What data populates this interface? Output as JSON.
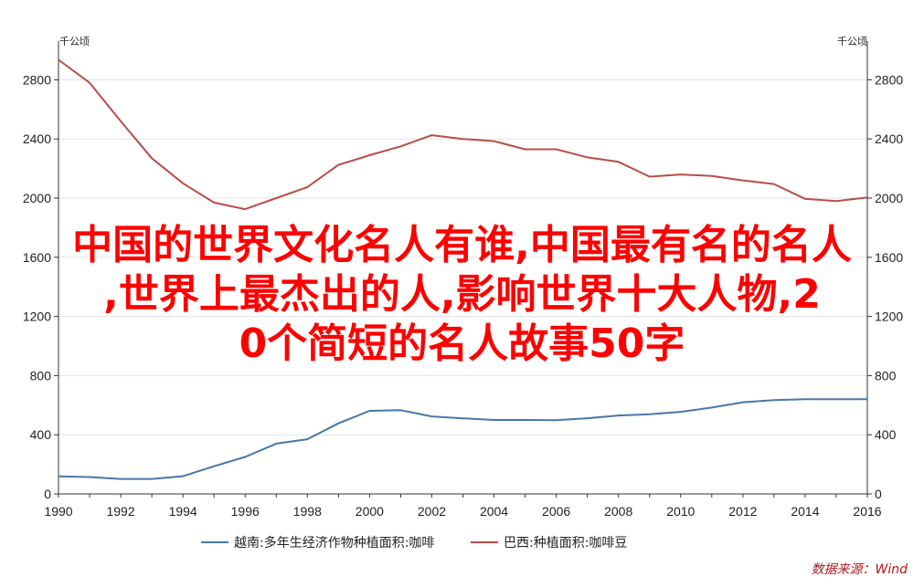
{
  "chart_data": {
    "type": "line",
    "x": [
      1990,
      1991,
      1992,
      1993,
      1994,
      1995,
      1996,
      1997,
      1998,
      1999,
      2000,
      2001,
      2002,
      2003,
      2004,
      2005,
      2006,
      2007,
      2008,
      2009,
      2010,
      2011,
      2012,
      2013,
      2014,
      2015,
      2016
    ],
    "series": [
      {
        "name": "越南:多年生经济作物种植面积:咖啡",
        "color": "#4a76a8",
        "values": [
          119,
          114,
          101,
          101,
          120,
          187,
          250,
          340,
          370,
          477,
          562,
          566,
          524,
          511,
          500,
          500,
          499,
          512,
          530,
          538,
          555,
          584,
          620,
          634,
          641,
          641,
          641
        ]
      },
      {
        "name": "巴西:种植面积:咖啡豆",
        "color": "#b84d4b",
        "values": [
          2935,
          2780,
          2520,
          2270,
          2100,
          1970,
          1925,
          2000,
          2075,
          2225,
          2290,
          2350,
          2425,
          2400,
          2385,
          2330,
          2330,
          2275,
          2245,
          2145,
          2160,
          2150,
          2120,
          2095,
          1995,
          1980,
          2005
        ]
      }
    ],
    "xlim": [
      1990,
      2016
    ],
    "ylim": [
      0,
      3000
    ],
    "y_ticks": [
      0,
      400,
      800,
      1200,
      1600,
      2000,
      2400,
      2800
    ],
    "x_ticks": [
      1990,
      1992,
      1994,
      1996,
      1998,
      2000,
      2002,
      2004,
      2006,
      2008,
      2010,
      2012,
      2014,
      2016
    ],
    "y_unit_left": "千公顷",
    "y_unit_right": "千公顷",
    "grid": true,
    "legend_position": "bottom"
  },
  "source": "数据来源：Wind",
  "overlay_lines": [
    "中国的世界文化名人有谁,中国最有名的名人",
    ",世界上最杰出的人,影响世界十大人物,2",
    "0个简短的名人故事50字"
  ]
}
